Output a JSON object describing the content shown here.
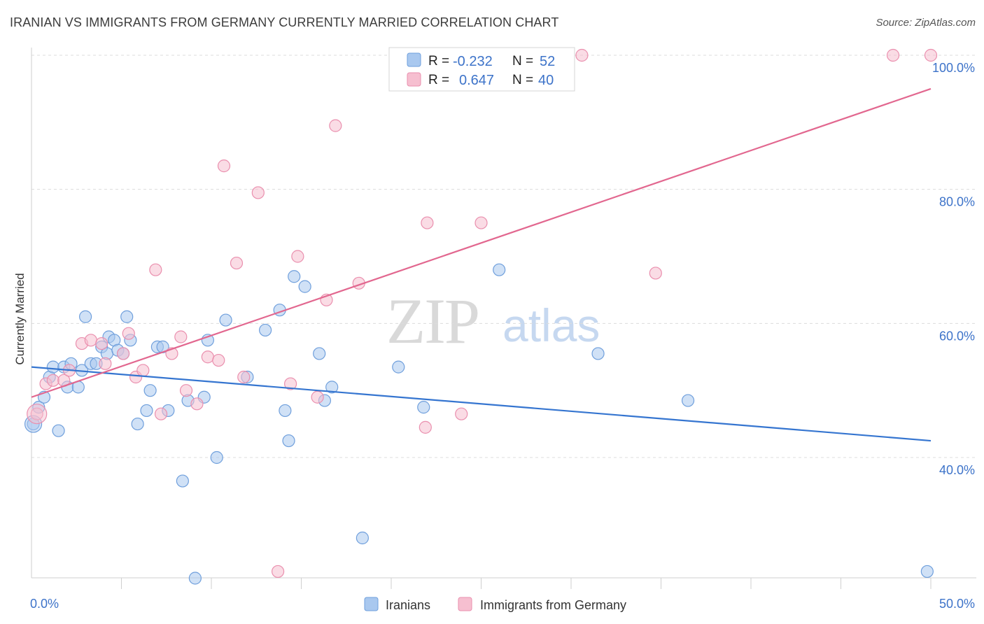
{
  "title": "IRANIAN VS IMMIGRANTS FROM GERMANY CURRENTLY MARRIED CORRELATION CHART",
  "source": "Source: ZipAtlas.com",
  "watermark": {
    "zip": "ZIP",
    "atlas": "atlas"
  },
  "colors": {
    "blue_fill": "#a9c8ef",
    "blue_stroke": "#6f9fdc",
    "blue_line": "#3575d0",
    "pink_fill": "#f6bfd0",
    "pink_stroke": "#ea8fae",
    "pink_line": "#e2678f",
    "tick_text": "#3d73c9",
    "grid": "#dcdcdc"
  },
  "stats_legend": [
    {
      "r_label": "R =",
      "r_value": "-0.232",
      "n_label": "N =",
      "n_value": "52",
      "color": "blue"
    },
    {
      "r_label": "R =",
      "r_value": "0.647",
      "n_label": "N =",
      "n_value": "40",
      "color": "pink"
    }
  ],
  "chart_data": {
    "type": "scatter",
    "title": "IRANIAN VS IMMIGRANTS FROM GERMANY CURRENTLY MARRIED CORRELATION CHART",
    "xlabel": "",
    "ylabel": "Currently Married",
    "xlim": [
      0,
      50
    ],
    "ylim": [
      20,
      102
    ],
    "x_tick_labels": [
      "0.0%",
      "50.0%"
    ],
    "y_tick_labels": [
      "40.0%",
      "60.0%",
      "80.0%",
      "100.0%"
    ],
    "y_ticks": [
      40,
      60,
      80,
      100
    ],
    "grid": true,
    "legend_position": "bottom",
    "series": [
      {
        "name": "Iranians",
        "color": "blue",
        "r": -0.232,
        "n": 52,
        "trend": {
          "x": [
            0,
            50
          ],
          "y": [
            53.5,
            42.5
          ]
        },
        "points": [
          [
            0.1,
            45.0
          ],
          [
            0.4,
            47.5
          ],
          [
            0.7,
            49.0
          ],
          [
            1.0,
            52.0
          ],
          [
            1.2,
            53.5
          ],
          [
            1.5,
            44.0
          ],
          [
            1.8,
            53.5
          ],
          [
            2.0,
            50.5
          ],
          [
            2.2,
            54.0
          ],
          [
            2.6,
            50.5
          ],
          [
            2.8,
            53.0
          ],
          [
            3.0,
            61.0
          ],
          [
            3.3,
            54.0
          ],
          [
            3.6,
            54.0
          ],
          [
            3.9,
            56.5
          ],
          [
            4.2,
            55.5
          ],
          [
            4.3,
            58.0
          ],
          [
            4.6,
            57.5
          ],
          [
            4.8,
            56.0
          ],
          [
            5.1,
            55.5
          ],
          [
            5.3,
            61.0
          ],
          [
            5.5,
            57.5
          ],
          [
            5.9,
            45.0
          ],
          [
            6.4,
            47.0
          ],
          [
            6.6,
            50.0
          ],
          [
            7.0,
            56.5
          ],
          [
            7.3,
            56.5
          ],
          [
            7.6,
            47.0
          ],
          [
            8.4,
            36.5
          ],
          [
            8.7,
            48.5
          ],
          [
            9.1,
            22.0
          ],
          [
            9.6,
            49.0
          ],
          [
            9.8,
            57.5
          ],
          [
            10.3,
            40.0
          ],
          [
            10.8,
            60.5
          ],
          [
            12.0,
            52.0
          ],
          [
            13.0,
            59.0
          ],
          [
            13.8,
            62.0
          ],
          [
            14.1,
            47.0
          ],
          [
            14.3,
            42.5
          ],
          [
            14.6,
            67.0
          ],
          [
            15.2,
            65.5
          ],
          [
            16.0,
            55.5
          ],
          [
            16.3,
            48.5
          ],
          [
            16.7,
            50.5
          ],
          [
            18.4,
            28.0
          ],
          [
            20.4,
            53.5
          ],
          [
            21.8,
            47.5
          ],
          [
            26.0,
            68.0
          ],
          [
            31.5,
            55.5
          ],
          [
            36.5,
            48.5
          ],
          [
            49.8,
            23.0
          ]
        ]
      },
      {
        "name": "Immigrants from Germany",
        "color": "pink",
        "r": 0.647,
        "n": 40,
        "trend": {
          "x": [
            0,
            50
          ],
          "y": [
            49.0,
            95.0
          ]
        },
        "points": [
          [
            0.3,
            46.5
          ],
          [
            0.8,
            51.0
          ],
          [
            1.2,
            51.5
          ],
          [
            1.8,
            51.5
          ],
          [
            2.1,
            53.0
          ],
          [
            2.8,
            57.0
          ],
          [
            3.3,
            57.5
          ],
          [
            3.9,
            57.0
          ],
          [
            4.1,
            54.0
          ],
          [
            5.1,
            55.5
          ],
          [
            5.4,
            58.5
          ],
          [
            5.8,
            52.0
          ],
          [
            6.2,
            53.0
          ],
          [
            6.9,
            68.0
          ],
          [
            7.2,
            46.5
          ],
          [
            7.8,
            55.5
          ],
          [
            8.3,
            58.0
          ],
          [
            8.6,
            50.0
          ],
          [
            9.2,
            48.0
          ],
          [
            9.8,
            55.0
          ],
          [
            10.4,
            54.5
          ],
          [
            10.7,
            83.5
          ],
          [
            11.4,
            69.0
          ],
          [
            11.8,
            52.0
          ],
          [
            12.6,
            79.5
          ],
          [
            13.7,
            23.0
          ],
          [
            14.4,
            51.0
          ],
          [
            14.8,
            70.0
          ],
          [
            15.9,
            49.0
          ],
          [
            16.4,
            63.5
          ],
          [
            16.9,
            89.5
          ],
          [
            18.2,
            66.0
          ],
          [
            21.9,
            44.5
          ],
          [
            22.0,
            75.0
          ],
          [
            23.9,
            46.5
          ],
          [
            25.0,
            75.0
          ],
          [
            30.6,
            100.0
          ],
          [
            34.7,
            67.5
          ],
          [
            47.9,
            100.0
          ],
          [
            50.0,
            100.0
          ]
        ]
      }
    ]
  }
}
